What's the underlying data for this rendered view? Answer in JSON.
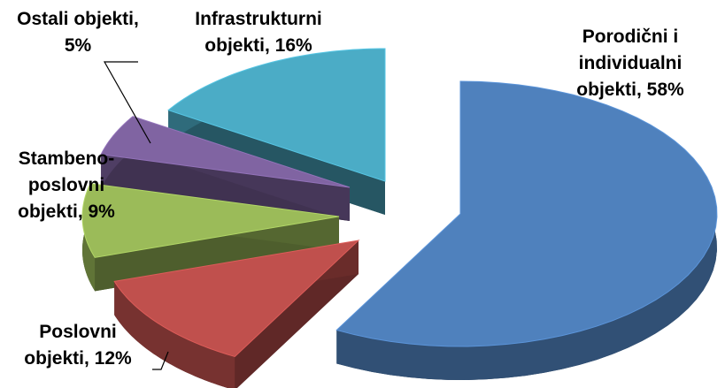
{
  "chart_data": {
    "type": "pie3d",
    "values": [
      58,
      12,
      9,
      5,
      16
    ],
    "value_labels": [
      "Porodični i individualni objekti, 58%",
      "Poslovni objekti, 12%",
      "Stambeno-poslovni objekti, 9%",
      "Ostali objekti, 5%",
      "Infrastrukturni objekti, 16%"
    ],
    "colors": [
      "#4f81bd",
      "#c0504d",
      "#9bbb59",
      "#8064a2",
      "#4bacc6"
    ]
  }
}
